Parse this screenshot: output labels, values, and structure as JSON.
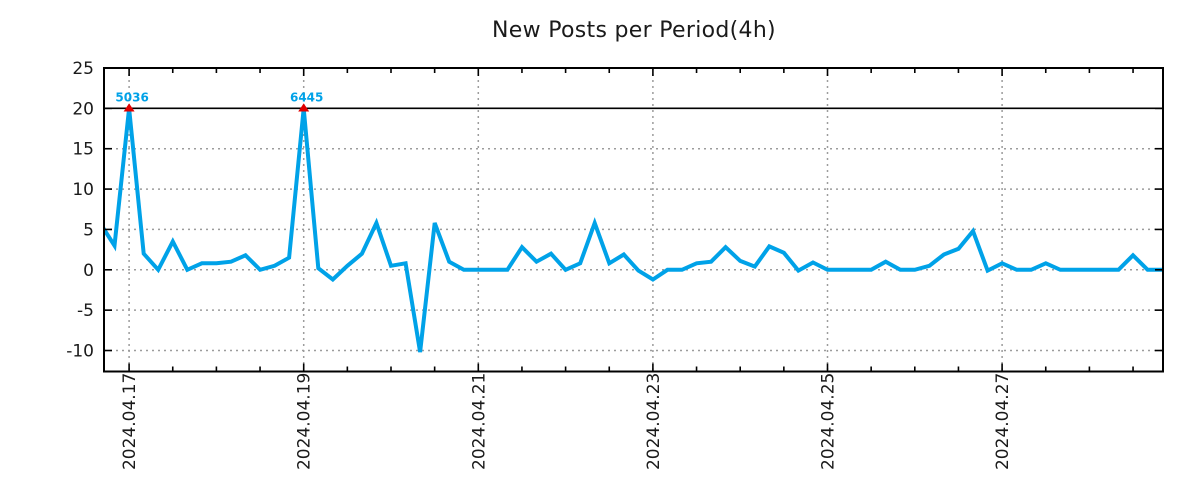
{
  "chart_data": {
    "type": "line",
    "title": "New Posts per Period(4h)",
    "point_interval_hours": 4,
    "x_axis": {
      "tick_labels": [
        "2024.04.17",
        "2024.04.19",
        "2024.04.21",
        "2024.04.23",
        "2024.04.25",
        "2024.04.27"
      ],
      "major_tick_every_days": 2,
      "minor_tick_every_hours": 12
    },
    "y_axis": {
      "tick_values": [
        25,
        20,
        15,
        10,
        5,
        0,
        -5,
        -10
      ],
      "ylim": [
        -12.6,
        25
      ]
    },
    "grid": true,
    "legend": null,
    "clip_level": 20,
    "values": [
      5.8,
      3,
      20,
      2,
      0,
      3.5,
      0,
      0.8,
      0.8,
      1,
      1.8,
      0,
      0.5,
      1.5,
      20,
      0.2,
      -1.2,
      0.5,
      2,
      5.8,
      0.5,
      0.8,
      -10.2,
      5.8,
      1,
      0,
      0,
      0,
      0,
      2.8,
      1,
      2,
      0,
      0.8,
      5.8,
      0.8,
      1.9,
      -0.1,
      -1.2,
      0,
      0,
      0.8,
      1,
      2.8,
      1.1,
      0.4,
      2.9,
      2.1,
      -0.1,
      0.9,
      0,
      0,
      0,
      0,
      1,
      0,
      0,
      0.5,
      1.9,
      2.6,
      4.8,
      -0.1,
      0.8,
      0,
      0,
      0.8,
      0,
      0,
      0,
      0,
      0,
      1.8,
      0,
      0,
      0
    ],
    "annotations": [
      {
        "label": "5036",
        "point_index": 2,
        "marker": "triangle-up"
      },
      {
        "label": "6445",
        "point_index": 14,
        "marker": "triangle-up"
      }
    ],
    "colors": {
      "line": "#00a2e8",
      "marker": "#e00000",
      "annotation_text": "#00a2e8",
      "grid": "#9c9c9c",
      "axis": "#000000",
      "text": "#1a1a1a"
    }
  }
}
